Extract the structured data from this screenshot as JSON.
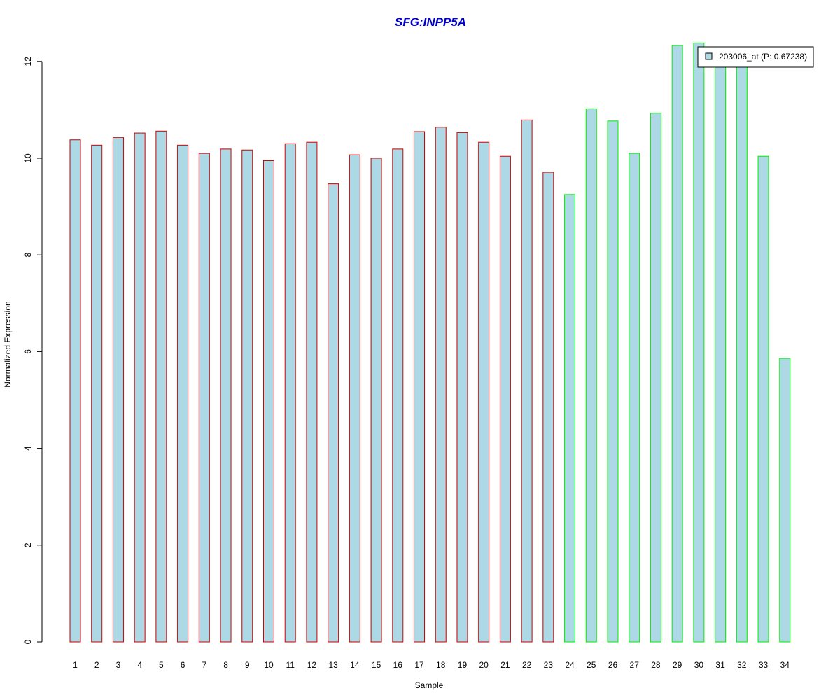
{
  "chart_data": {
    "type": "bar",
    "title": "SFG:INPP5A",
    "xlabel": "Sample",
    "ylabel": "Normalized Expression",
    "categories": [
      "1",
      "2",
      "3",
      "4",
      "5",
      "6",
      "7",
      "8",
      "9",
      "10",
      "11",
      "12",
      "13",
      "14",
      "15",
      "16",
      "17",
      "18",
      "19",
      "20",
      "21",
      "22",
      "23",
      "24",
      "25",
      "26",
      "27",
      "28",
      "29",
      "30",
      "31",
      "32",
      "33",
      "34"
    ],
    "series": [
      {
        "name": "203006_at (P: 0.67238)",
        "values": [
          10.38,
          10.27,
          10.43,
          10.52,
          10.56,
          10.27,
          10.1,
          10.19,
          10.17,
          9.95,
          10.3,
          10.33,
          9.47,
          10.07,
          10.0,
          10.19,
          10.55,
          10.64,
          10.53,
          10.33,
          10.04,
          10.79,
          9.71,
          9.25,
          11.02,
          10.77,
          10.1,
          10.93,
          12.33,
          12.38,
          11.95,
          11.9,
          10.04,
          5.86
        ]
      }
    ],
    "groups": [
      {
        "from": 1,
        "to": 23,
        "border_color": "#cc0000"
      },
      {
        "from": 24,
        "to": 34,
        "border_color": "#00ee00"
      }
    ],
    "bar_fill": "#add8e6",
    "title_color": "#0000cc",
    "ylim": [
      0,
      12.4
    ],
    "yticks": [
      0,
      2,
      4,
      6,
      8,
      10,
      12
    ],
    "grid": false,
    "legend": {
      "position": "top-right",
      "label": "203006_at (P: 0.67238)"
    }
  }
}
